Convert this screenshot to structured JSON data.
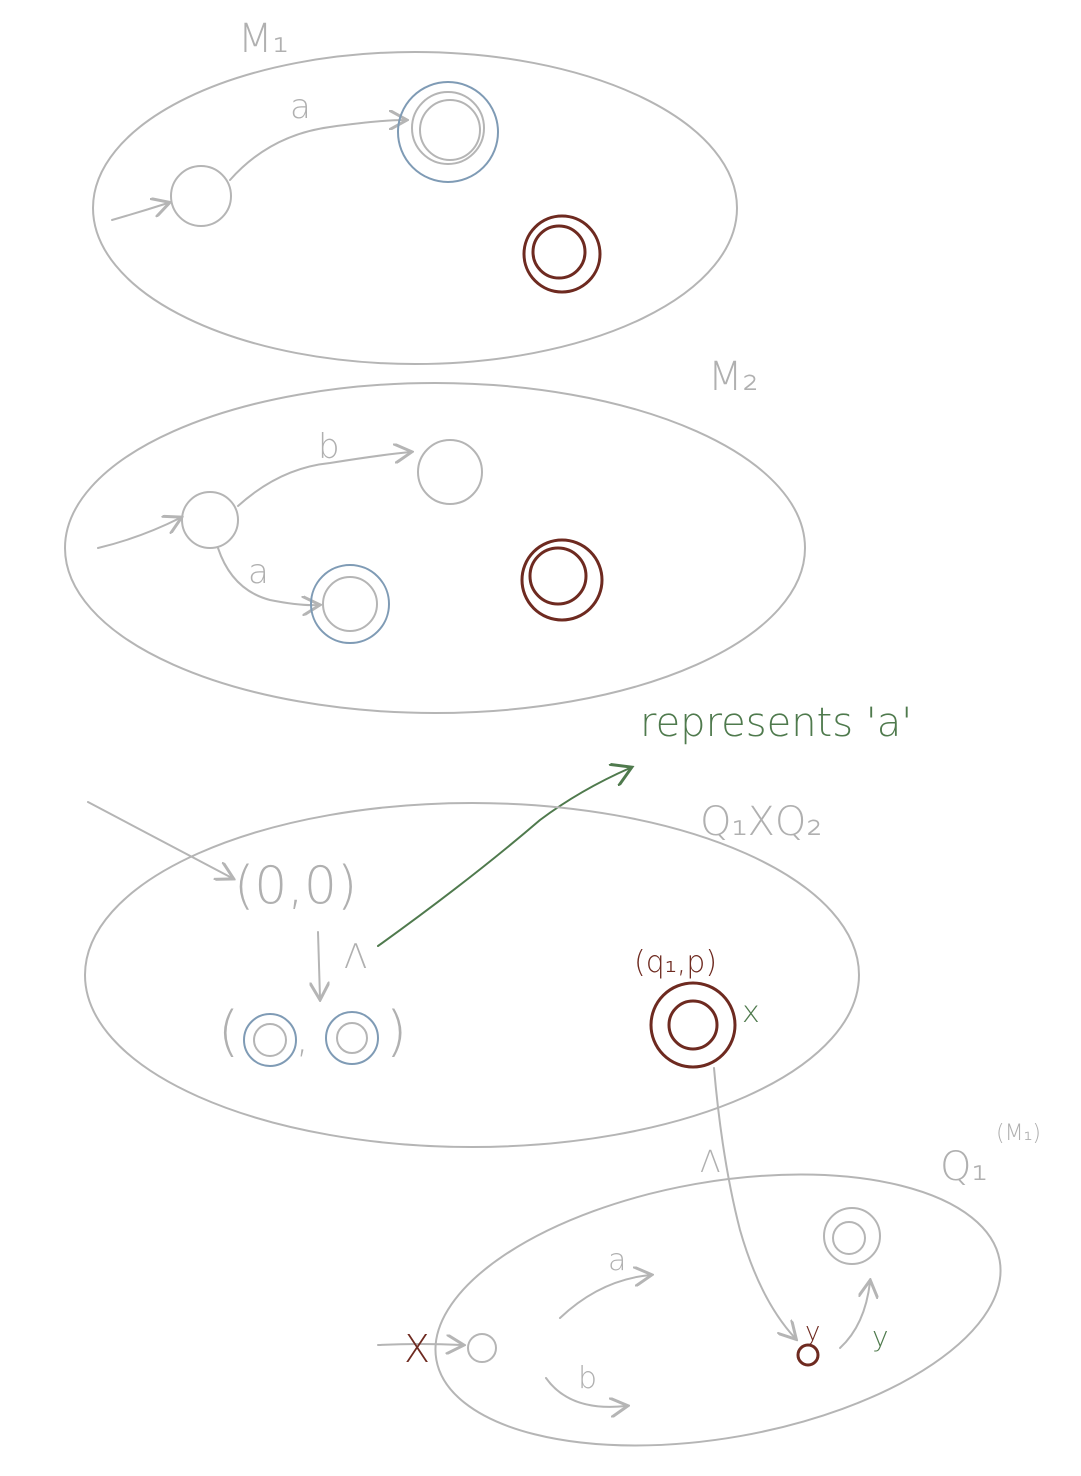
{
  "machine1": {
    "label": "M₁",
    "transition_a": "a"
  },
  "machine2": {
    "label": "M₂",
    "transition_b": "b",
    "transition_a": "a"
  },
  "annotation": {
    "text": "represents 'a'"
  },
  "product": {
    "label": "Q₁XQ₂",
    "start_state": "(0,0)",
    "lambda": "Λ",
    "final_open": "(",
    "final_comma": ",",
    "final_close": ")",
    "red_state_label": "(q₁,p)",
    "marker_x": "x"
  },
  "machine_q1": {
    "label": "Q₁",
    "label_note": "(M₁)",
    "lambda": "Λ",
    "transition_a": "a",
    "transition_b": "b",
    "marker_x": "X",
    "state_y": "y",
    "transition_y": "y"
  },
  "colors": {
    "sketch_gray": "#b5b5b5",
    "accept_blue": "#7f9bb5",
    "dead_red": "#6e2a20",
    "note_green": "#4f7a4d"
  }
}
